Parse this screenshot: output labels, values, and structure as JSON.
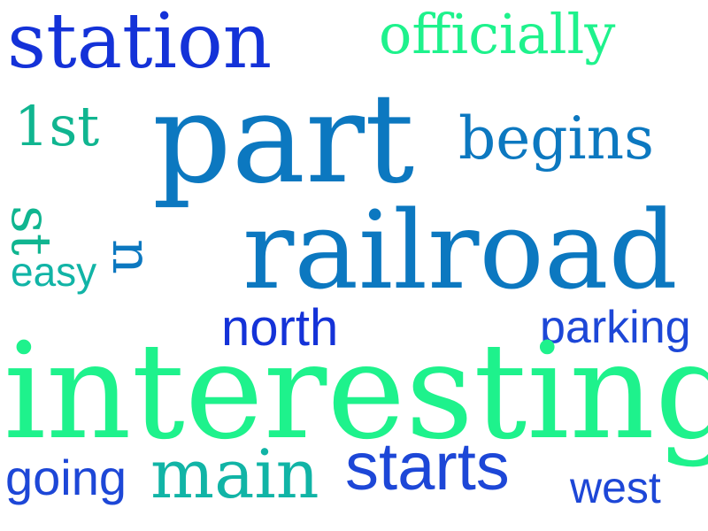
{
  "word_cloud": {
    "words": [
      {
        "text": "station",
        "color": "#1432d8"
      },
      {
        "text": "officially",
        "color": "#1ef28c"
      },
      {
        "text": "1st",
        "color": "#10b590"
      },
      {
        "text": "part",
        "color": "#0c78c0"
      },
      {
        "text": "begins",
        "color": "#0c78c0"
      },
      {
        "text": "st",
        "color": "#10b590"
      },
      {
        "text": "n",
        "color": "#0c78c0"
      },
      {
        "text": "easy",
        "color": "#11b4a6"
      },
      {
        "text": "railroad",
        "color": "#0c78c0"
      },
      {
        "text": "north",
        "color": "#1432d8"
      },
      {
        "text": "parking",
        "color": "#1d47d7"
      },
      {
        "text": "interesting",
        "color": "#1ef28c"
      },
      {
        "text": "going",
        "color": "#1d47d7"
      },
      {
        "text": "main",
        "color": "#11b4a6"
      },
      {
        "text": "starts",
        "color": "#1d47d7"
      },
      {
        "text": "west",
        "color": "#1d47d7"
      }
    ]
  }
}
